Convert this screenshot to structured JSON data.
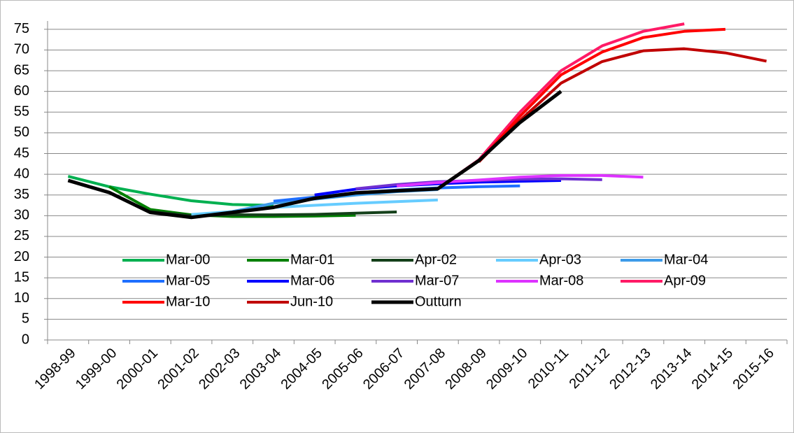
{
  "chart_data": {
    "type": "line",
    "categories": [
      "1998-99",
      "1999-00",
      "2000-01",
      "2001-02",
      "2002-03",
      "2003-04",
      "2004-05",
      "2005-06",
      "2006-07",
      "2007-08",
      "2008-09",
      "2009-10",
      "2010-11",
      "2011-12",
      "2012-13",
      "2013-14",
      "2014-15",
      "2015-16"
    ],
    "series": [
      {
        "name": "Mar-00",
        "color": "#00b050",
        "values": [
          39.5,
          37,
          35.2,
          33.6,
          32.7,
          32.5,
          null,
          null,
          null,
          null,
          null,
          null,
          null,
          null,
          null,
          null,
          null,
          null
        ]
      },
      {
        "name": "Mar-01",
        "color": "#008000",
        "values": [
          null,
          37,
          31.5,
          30.2,
          29.8,
          29.8,
          29.9,
          30.1,
          null,
          null,
          null,
          null,
          null,
          null,
          null,
          null,
          null,
          null
        ]
      },
      {
        "name": "Apr-02",
        "color": "#14401a",
        "values": [
          null,
          null,
          31,
          30,
          30.2,
          30.2,
          30.3,
          30.6,
          30.9,
          null,
          null,
          null,
          null,
          null,
          null,
          null,
          null,
          null
        ]
      },
      {
        "name": "Apr-03",
        "color": "#66ccff",
        "values": [
          null,
          null,
          null,
          30.3,
          31,
          32,
          32.5,
          33,
          33.4,
          33.8,
          null,
          null,
          null,
          null,
          null,
          null,
          null,
          null
        ]
      },
      {
        "name": "Mar-04",
        "color": "#3d9be9",
        "values": [
          null,
          null,
          null,
          null,
          31,
          33,
          34,
          35,
          35.8,
          36.3,
          null,
          null,
          null,
          null,
          null,
          null,
          null,
          null
        ]
      },
      {
        "name": "Mar-05",
        "color": "#1f6fff",
        "values": [
          null,
          null,
          null,
          null,
          null,
          33.5,
          34.5,
          35.5,
          36.2,
          36.7,
          37,
          37.2,
          null,
          null,
          null,
          null,
          null,
          null
        ]
      },
      {
        "name": "Mar-06",
        "color": "#0000ff",
        "values": [
          null,
          null,
          null,
          null,
          null,
          null,
          35,
          36.4,
          37.2,
          37.7,
          38.1,
          38.3,
          38.5,
          null,
          null,
          null,
          null,
          null
        ]
      },
      {
        "name": "Mar-07",
        "color": "#7030d0",
        "values": [
          null,
          null,
          null,
          null,
          null,
          null,
          null,
          36.5,
          37.5,
          38.2,
          38.5,
          38.8,
          38.9,
          38.7,
          null,
          null,
          null,
          null
        ]
      },
      {
        "name": "Mar-08",
        "color": "#dd33ff",
        "values": [
          null,
          null,
          null,
          null,
          null,
          null,
          null,
          null,
          37.2,
          38,
          38.6,
          39.3,
          39.7,
          39.7,
          39.3,
          null,
          null,
          null
        ]
      },
      {
        "name": "Apr-09",
        "color": "#ff1a66",
        "values": [
          null,
          null,
          null,
          null,
          null,
          null,
          null,
          null,
          null,
          36.5,
          43.5,
          55,
          65,
          71,
          74.5,
          76.3,
          null,
          null
        ]
      },
      {
        "name": "Mar-10",
        "color": "#ff0000",
        "values": [
          null,
          null,
          null,
          null,
          null,
          null,
          null,
          null,
          null,
          null,
          43,
          54,
          64,
          69.5,
          73,
          74.5,
          75,
          null
        ]
      },
      {
        "name": "Jun-10",
        "color": "#c00000",
        "values": [
          null,
          null,
          null,
          null,
          null,
          null,
          null,
          null,
          null,
          null,
          43,
          53,
          62,
          67.2,
          69.8,
          70.3,
          69.3,
          67.3
        ]
      },
      {
        "name": "Outturn",
        "color": "#000000",
        "values": [
          38.5,
          35.6,
          30.8,
          29.6,
          30.8,
          32,
          34.2,
          35.5,
          36,
          36.5,
          43.3,
          52.5,
          60,
          null,
          null,
          null,
          null,
          null
        ]
      }
    ],
    "ylim": [
      0,
      77
    ],
    "yticks": [
      0,
      5,
      10,
      15,
      20,
      25,
      30,
      35,
      40,
      45,
      50,
      55,
      60,
      65,
      70,
      75
    ],
    "grid": true
  }
}
